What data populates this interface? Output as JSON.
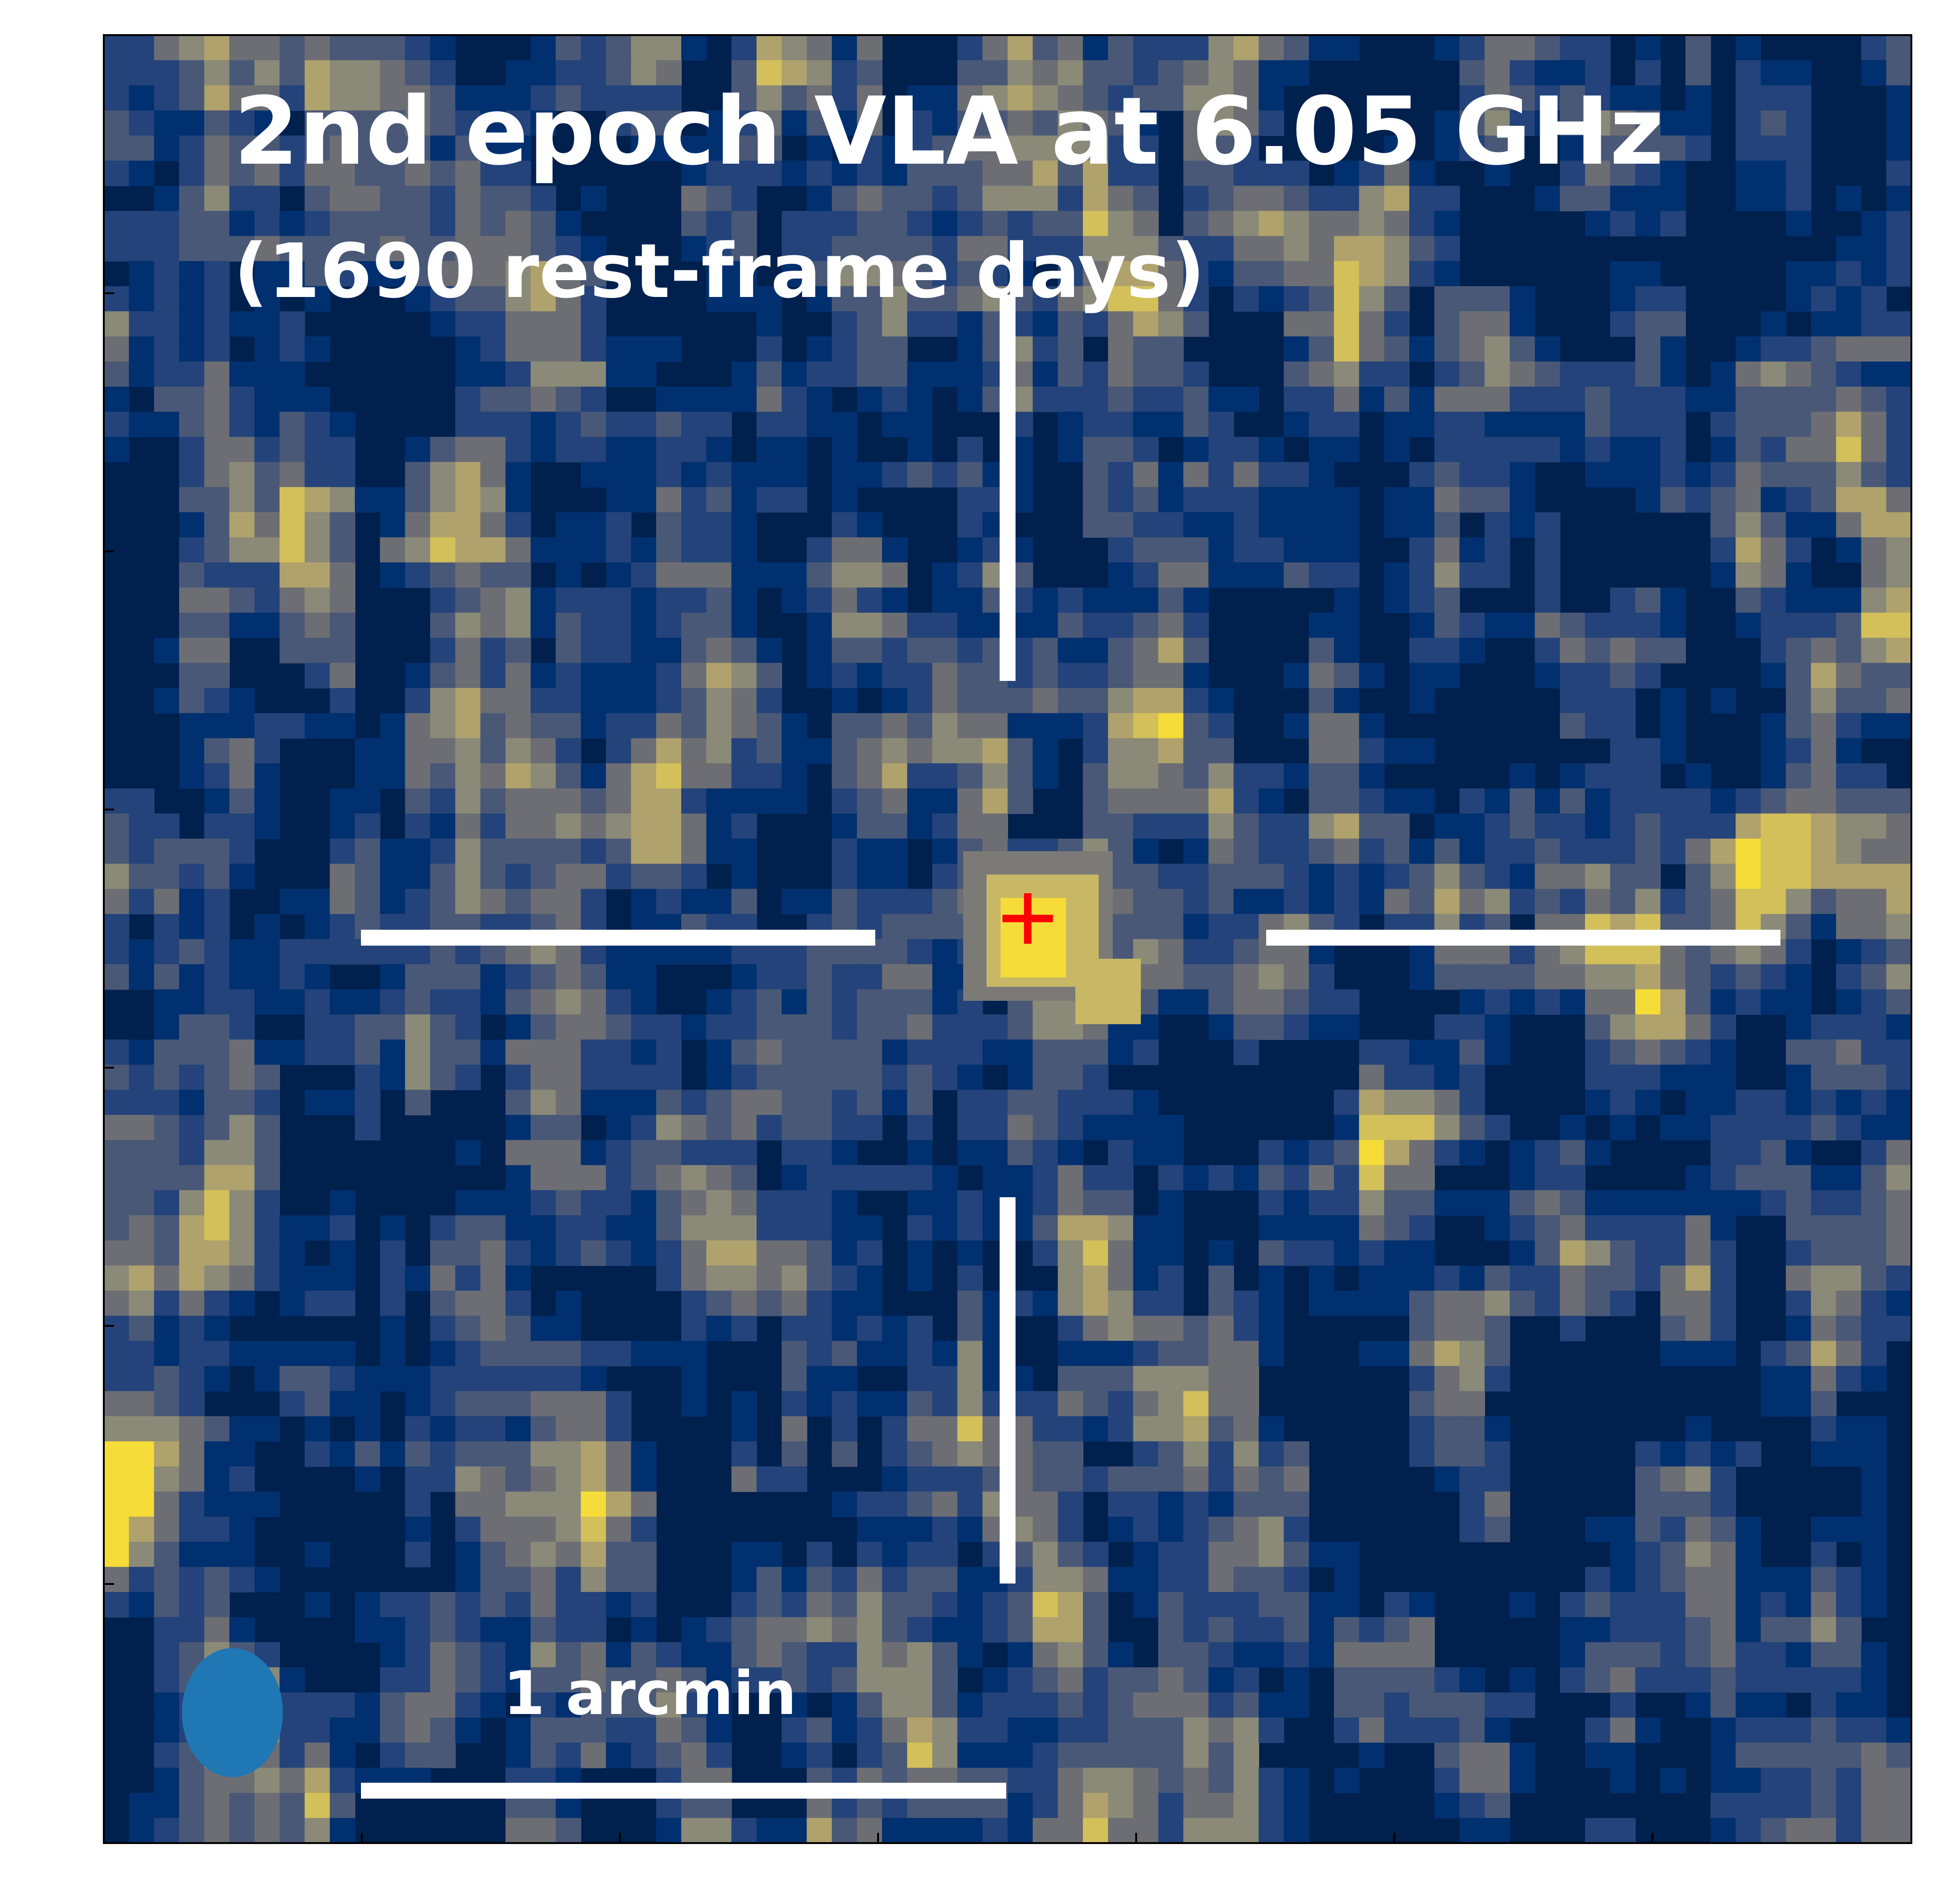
{
  "figure": {
    "title": "2nd epoch VLA at 6.05 GHz",
    "subtitle": "(1690 rest-frame days)",
    "scale_bar_label": "1 arcmin"
  },
  "colors": {
    "background_map": "#00204d",
    "colormap": "cividis",
    "crosshair": "#ffffff",
    "source_marker": "#ff0000",
    "beam": "#1f77b4"
  },
  "markers": {
    "source_marker_symbol": "+",
    "beam_shape": "ellipse"
  }
}
